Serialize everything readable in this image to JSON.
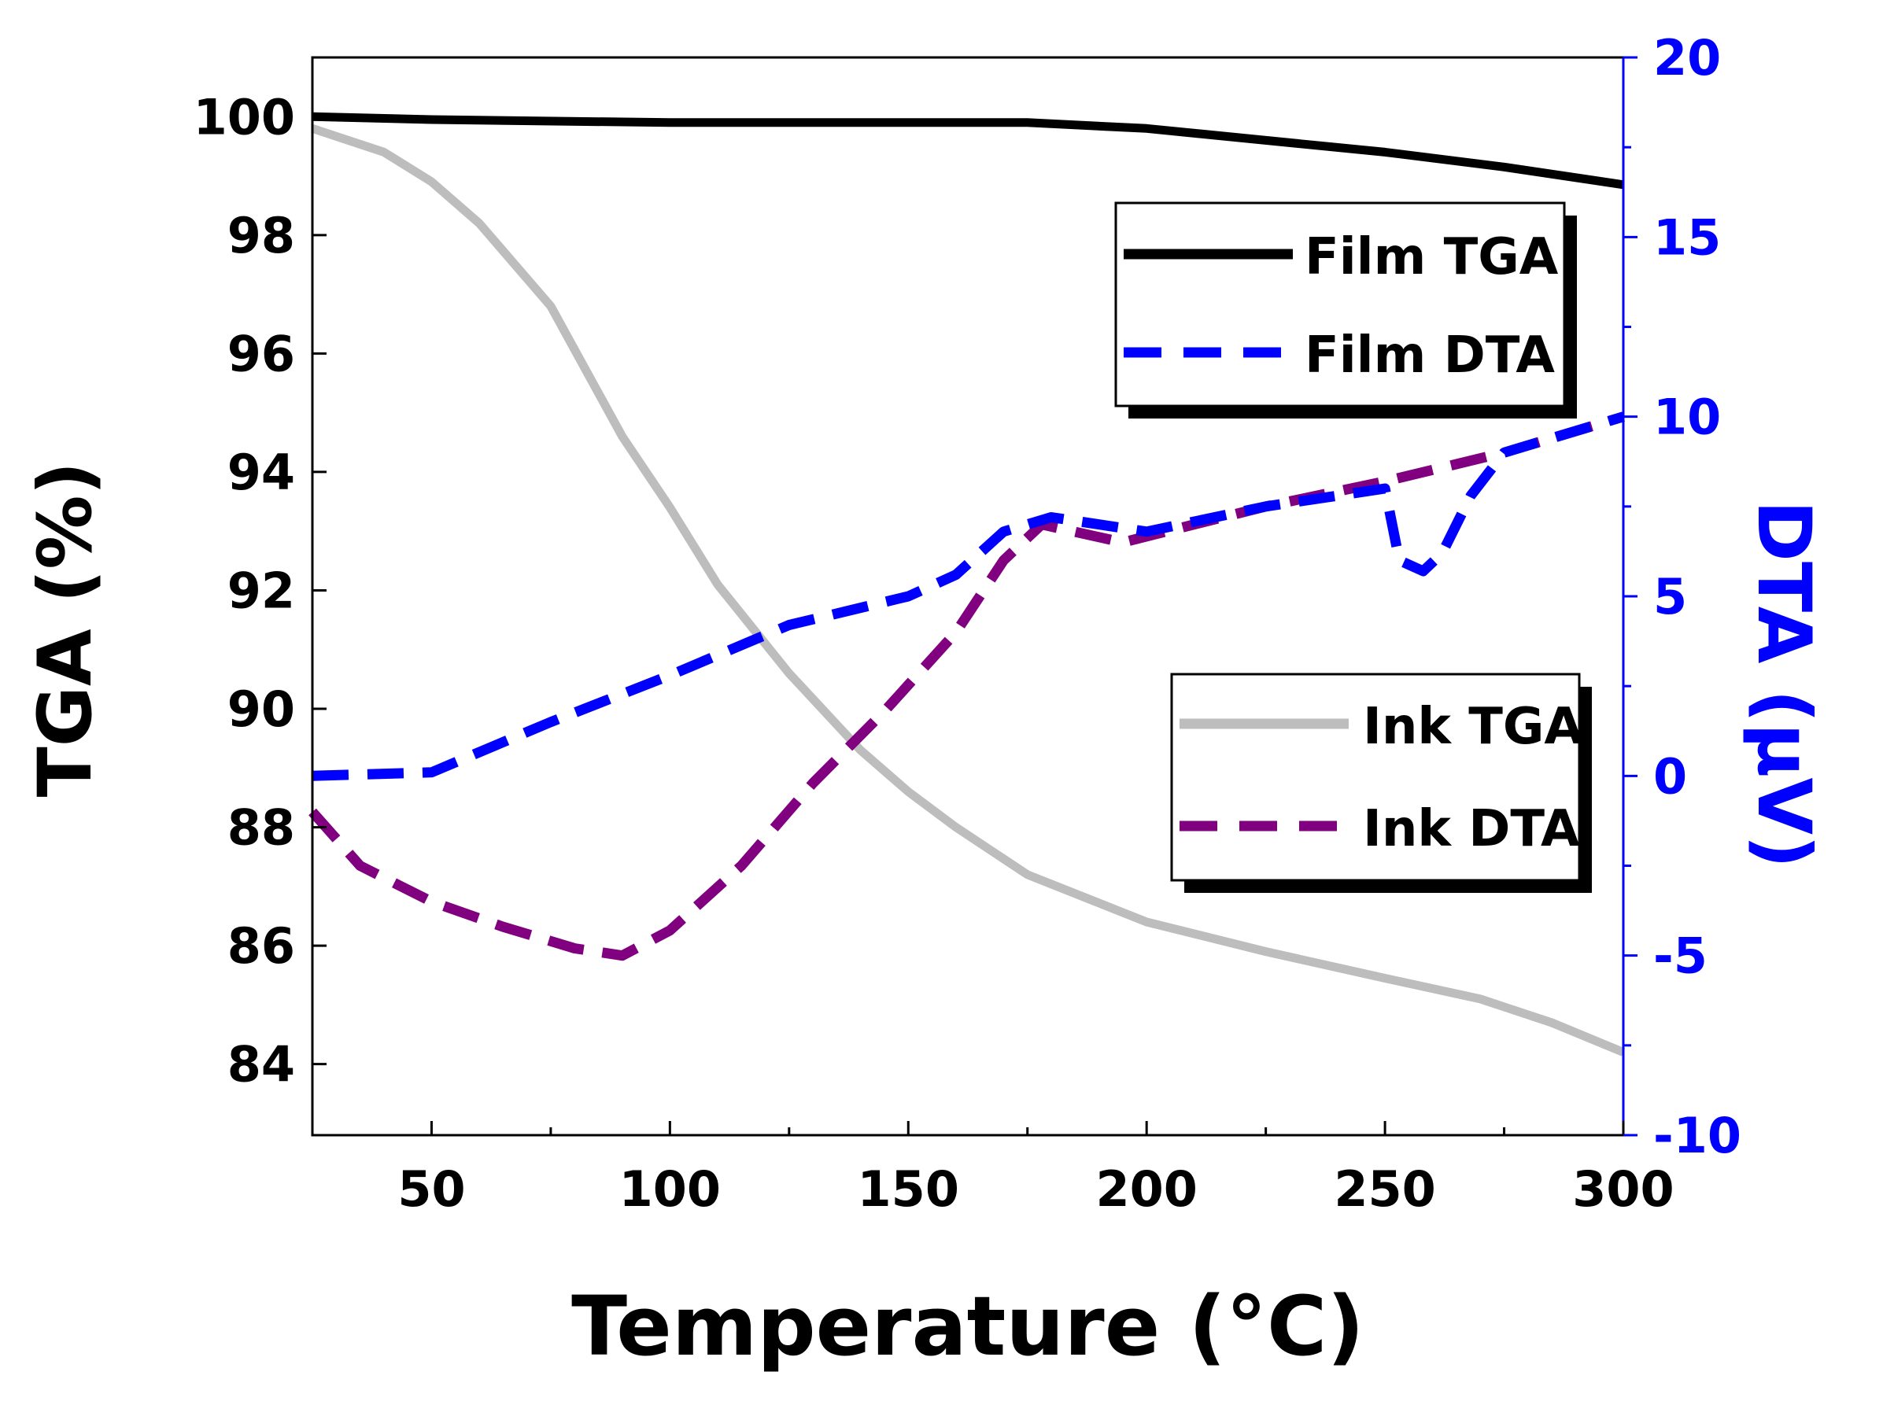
{
  "chart_data": {
    "type": "line",
    "title": "",
    "xlabel": "Temperature (°C)",
    "ylabel_left": "TGA (%)",
    "ylabel_right": "DTA (µV)",
    "xlim": [
      25,
      300
    ],
    "ylim_left": [
      82.8,
      101
    ],
    "ylim_right": [
      -10,
      20
    ],
    "x_ticks": [
      50,
      100,
      150,
      200,
      250,
      300
    ],
    "y_left_ticks": [
      84,
      86,
      88,
      90,
      92,
      94,
      96,
      98,
      100
    ],
    "y_right_ticks": [
      -10,
      -5,
      0,
      5,
      10,
      15,
      20
    ],
    "grid": false,
    "series": [
      {
        "name": "Film TGA",
        "axis": "left",
        "style": "solid",
        "color": "#000000",
        "x": [
          25,
          50,
          100,
          150,
          175,
          200,
          225,
          250,
          275,
          300
        ],
        "y": [
          100,
          99.95,
          99.9,
          99.9,
          99.9,
          99.8,
          99.6,
          99.4,
          99.15,
          98.85
        ]
      },
      {
        "name": "Film DTA",
        "axis": "right",
        "style": "dashed",
        "color": "#0000FF",
        "x": [
          25,
          50,
          75,
          100,
          125,
          150,
          160,
          170,
          180,
          200,
          225,
          250,
          253,
          258,
          262,
          268,
          275,
          300
        ],
        "y": [
          0,
          0.1,
          1.5,
          2.8,
          4.2,
          5,
          5.6,
          6.8,
          7.2,
          6.8,
          7.5,
          8,
          6,
          5.7,
          6.2,
          7.8,
          9,
          10
        ]
      },
      {
        "name": "Ink TGA",
        "axis": "left",
        "style": "solid",
        "color": "#BDBDBD",
        "x": [
          25,
          40,
          50,
          60,
          75,
          90,
          100,
          110,
          125,
          140,
          150,
          160,
          175,
          200,
          225,
          250,
          270,
          285,
          300
        ],
        "y": [
          99.8,
          99.4,
          98.9,
          98.2,
          96.8,
          94.6,
          93.4,
          92.1,
          90.6,
          89.3,
          88.6,
          88,
          87.2,
          86.4,
          85.9,
          85.45,
          85.1,
          84.7,
          84.2
        ]
      },
      {
        "name": "Ink DTA",
        "axis": "right",
        "style": "dashed",
        "color": "#800080",
        "x": [
          25,
          35,
          50,
          65,
          80,
          90,
          100,
          115,
          130,
          145,
          160,
          170,
          178,
          195,
          225,
          250,
          275,
          300
        ],
        "y": [
          -1,
          -2.5,
          -3.5,
          -4.2,
          -4.8,
          -5,
          -4.3,
          -2.5,
          -0.2,
          1.8,
          4,
          6,
          7,
          6.5,
          7.5,
          8.2,
          9,
          10
        ]
      }
    ],
    "legends": [
      {
        "entries": [
          "Film TGA",
          "Film DTA"
        ],
        "position": "top-right"
      },
      {
        "entries": [
          "Ink TGA",
          "Ink DTA"
        ],
        "position": "middle-right"
      }
    ]
  }
}
